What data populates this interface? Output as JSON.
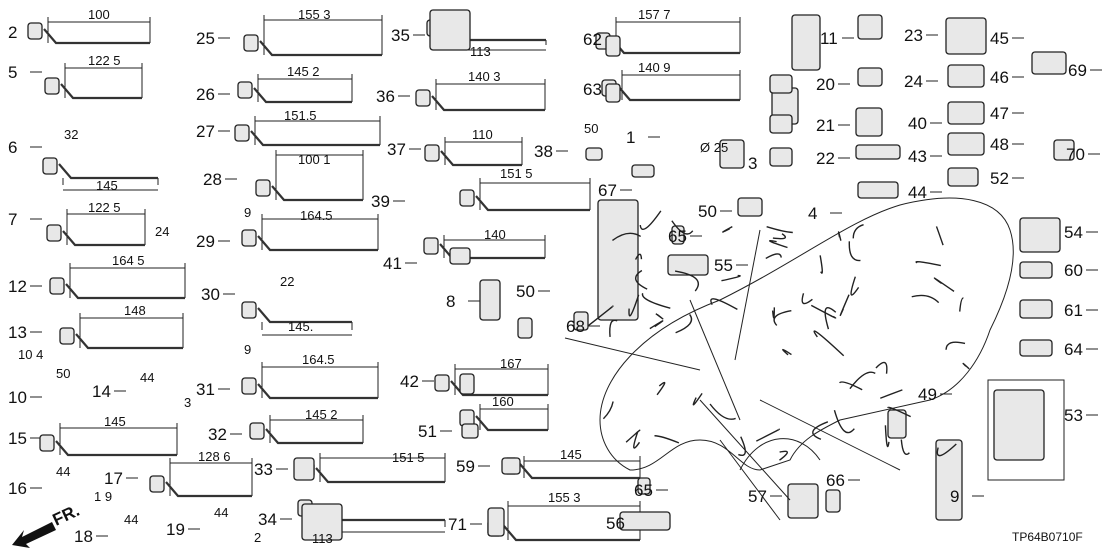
{
  "diagram": {
    "code": "TP64B0710F",
    "front_marker": "FR.",
    "callouts": [
      "2",
      "5",
      "6",
      "7",
      "12",
      "13",
      "10",
      "14",
      "15",
      "16",
      "17",
      "18",
      "19",
      "25",
      "26",
      "27",
      "28",
      "29",
      "30",
      "31",
      "32",
      "33",
      "34",
      "35",
      "36",
      "37",
      "38",
      "39",
      "41",
      "42",
      "51",
      "59",
      "71",
      "8",
      "50",
      "68",
      "1",
      "3",
      "4",
      "50",
      "65",
      "55",
      "67",
      "62",
      "63",
      "11",
      "20",
      "21",
      "22",
      "23",
      "24",
      "40",
      "43",
      "44",
      "45",
      "46",
      "47",
      "48",
      "52",
      "69",
      "70",
      "54",
      "60",
      "61",
      "64",
      "53",
      "49",
      "9",
      "66",
      "57",
      "56",
      "65"
    ],
    "dimensions": [
      "100",
      "122 5",
      "32",
      "145",
      "122 5",
      "24",
      "164 5",
      "148",
      "10 4",
      "50",
      "44",
      "3",
      "145",
      "44",
      "1 9",
      "128 6",
      "44",
      "44",
      "2",
      "155 3",
      "145 2",
      "151.5",
      "100 1",
      "9",
      "164.5",
      "22",
      "145.",
      "9",
      "164.5",
      "145 2",
      "151 5",
      "113",
      "113",
      "140 3",
      "110",
      "50",
      "151 5",
      "140",
      "167",
      "160",
      "145",
      "155 3",
      "157 7",
      "140 9",
      "Ø 25"
    ]
  }
}
